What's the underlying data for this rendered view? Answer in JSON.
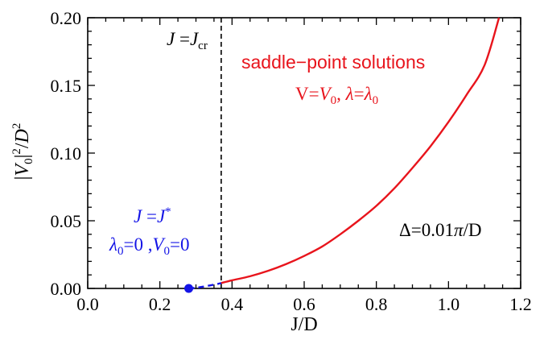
{
  "chart_data": {
    "type": "line",
    "xlabel": "J/D",
    "ylabel": "|V0|²/D²",
    "xlim": [
      0.0,
      1.2
    ],
    "ylim": [
      0.0,
      0.2
    ],
    "grid": false,
    "x_ticks": [
      "0.0",
      "0.2",
      "0.4",
      "0.6",
      "0.8",
      "1.0",
      "1.2"
    ],
    "y_ticks": [
      "0.00",
      "0.05",
      "0.10",
      "0.15",
      "0.20"
    ],
    "series": [
      {
        "name": "saddle−point solutions",
        "color": "#e8141c",
        "style": "solid",
        "x": [
          0.37,
          0.4,
          0.45,
          0.5,
          0.55,
          0.6,
          0.65,
          0.7,
          0.75,
          0.8,
          0.85,
          0.9,
          0.95,
          1.0,
          1.05,
          1.1,
          1.14
        ],
        "y": [
          0.004,
          0.006,
          0.009,
          0.013,
          0.018,
          0.024,
          0.031,
          0.04,
          0.05,
          0.061,
          0.074,
          0.089,
          0.105,
          0.123,
          0.143,
          0.165,
          0.2
        ]
      },
      {
        "color": "#1414e6",
        "style": "dashed",
        "x": [
          0.28,
          0.3,
          0.32,
          0.34,
          0.36,
          0.37
        ],
        "y": [
          0.0,
          0.0005,
          0.0013,
          0.0023,
          0.0033,
          0.004
        ]
      }
    ],
    "points": [
      {
        "x": 0.28,
        "y": 0.0,
        "color": "#1414e6"
      }
    ],
    "vlines": [
      {
        "x": 0.37,
        "style": "dashed",
        "color": "#000000"
      }
    ],
    "annotations": {
      "jcr": "J = J_cr",
      "saddle_line1": "saddle−point solutions",
      "saddle_line2": "V=V0, λ=λ0",
      "jstar_line1": "J = J*",
      "jstar_line2": "λ0=0 ,V0=0",
      "delta": "Δ=0.01π/D"
    }
  }
}
